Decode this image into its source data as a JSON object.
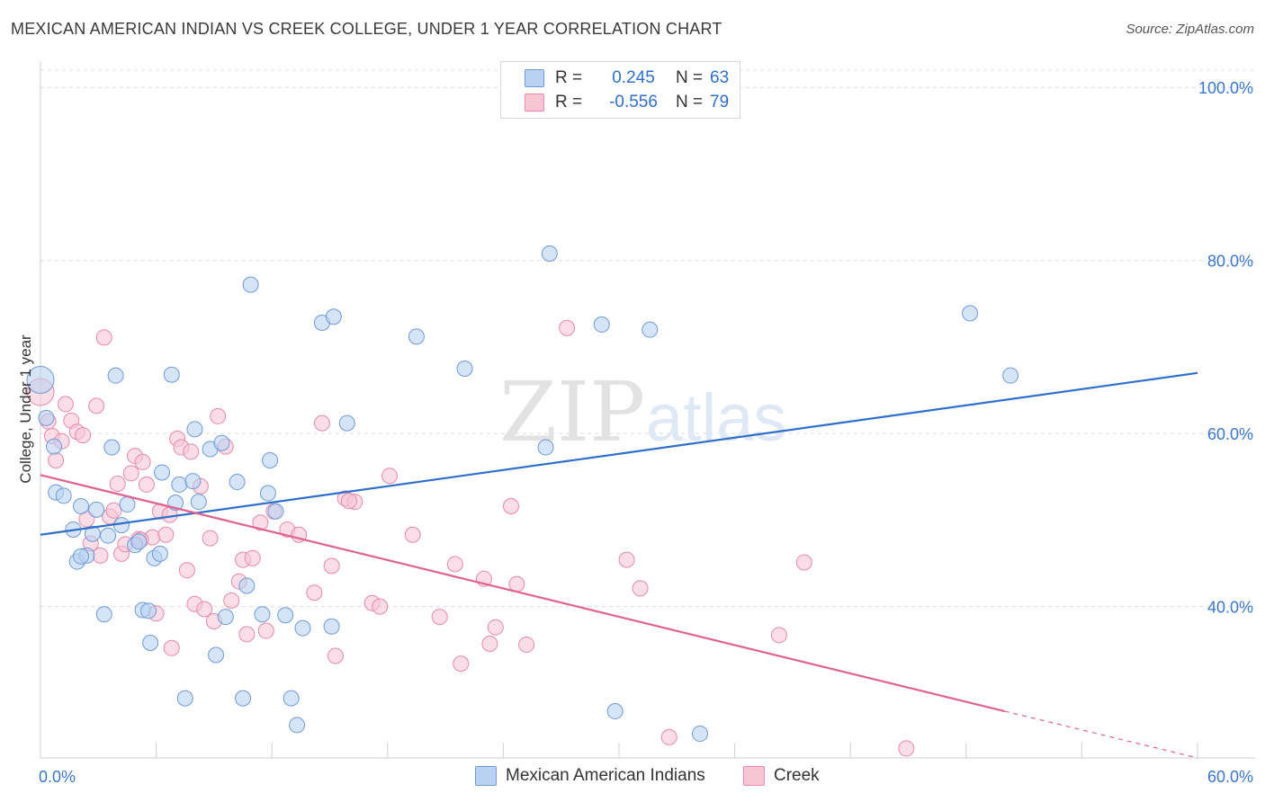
{
  "title": "MEXICAN AMERICAN INDIAN VS CREEK COLLEGE, UNDER 1 YEAR CORRELATION CHART",
  "source": "Source: ZipAtlas.com",
  "watermark": {
    "zip": "ZIP",
    "atlas": "atlas"
  },
  "legend": {
    "rows": [
      {
        "r_label": "R =",
        "r_value": "0.245",
        "n_label": "N =",
        "n_value": "63"
      },
      {
        "r_label": "R =",
        "r_value": "-0.556",
        "n_label": "N =",
        "n_value": "79"
      }
    ]
  },
  "bottom_legend": {
    "series1": "Mexican American Indians",
    "series2": "Creek"
  },
  "colors": {
    "blue_fill": "#b9d2f2",
    "blue_stroke": "#6f9ad8",
    "blue_line": "#2f6fca",
    "pink_fill": "#f7c6d5",
    "pink_stroke": "#e68aa8",
    "pink_line": "#e0628f",
    "axis_text": "#3b76cc",
    "grid": "#dcdcdc"
  },
  "chart_data": {
    "type": "scatter",
    "title": "MEXICAN AMERICAN INDIAN VS CREEK COLLEGE, UNDER 1 YEAR CORRELATION CHART",
    "xlabel": "",
    "ylabel": "College, Under 1 year",
    "xlim": [
      0,
      60
    ],
    "ylim": [
      22.5,
      102
    ],
    "x_tick_labels": [
      "0.0%",
      "60.0%"
    ],
    "y_ticks": [
      40,
      60,
      80,
      100
    ],
    "y_tick_labels": [
      "40.0%",
      "60.0%",
      "80.0%",
      "100.0%"
    ],
    "series": [
      {
        "name": "Mexican American Indians",
        "r": 0.245,
        "n": 63,
        "trend": {
          "x": [
            0,
            60
          ],
          "y": [
            48.3,
            67.0
          ]
        },
        "points": [
          [
            0.0,
            66.2
          ],
          [
            0.3,
            61.8
          ],
          [
            0.7,
            58.5
          ],
          [
            0.8,
            53.2
          ],
          [
            1.2,
            52.8
          ],
          [
            1.7,
            48.9
          ],
          [
            1.9,
            45.2
          ],
          [
            2.1,
            51.6
          ],
          [
            2.4,
            45.9
          ],
          [
            2.7,
            48.4
          ],
          [
            2.9,
            51.2
          ],
          [
            3.3,
            39.1
          ],
          [
            3.5,
            48.2
          ],
          [
            3.7,
            58.4
          ],
          [
            3.9,
            66.7
          ],
          [
            4.2,
            49.4
          ],
          [
            4.5,
            51.8
          ],
          [
            4.9,
            47.1
          ],
          [
            5.1,
            47.5
          ],
          [
            5.3,
            39.6
          ],
          [
            5.6,
            39.5
          ],
          [
            5.7,
            35.8
          ],
          [
            5.9,
            45.6
          ],
          [
            6.2,
            46.1
          ],
          [
            6.3,
            55.5
          ],
          [
            6.8,
            66.8
          ],
          [
            7.0,
            52.0
          ],
          [
            7.2,
            54.1
          ],
          [
            7.5,
            29.4
          ],
          [
            7.9,
            54.5
          ],
          [
            8.0,
            60.5
          ],
          [
            8.2,
            52.1
          ],
          [
            8.8,
            58.2
          ],
          [
            9.1,
            34.4
          ],
          [
            9.4,
            58.9
          ],
          [
            9.6,
            38.8
          ],
          [
            10.2,
            54.4
          ],
          [
            10.5,
            29.4
          ],
          [
            10.7,
            42.4
          ],
          [
            10.9,
            77.2
          ],
          [
            11.5,
            39.1
          ],
          [
            11.8,
            53.1
          ],
          [
            11.9,
            56.9
          ],
          [
            12.2,
            51.0
          ],
          [
            12.7,
            39.0
          ],
          [
            13.0,
            29.4
          ],
          [
            13.3,
            26.3
          ],
          [
            13.6,
            37.5
          ],
          [
            14.6,
            72.8
          ],
          [
            15.1,
            37.7
          ],
          [
            15.2,
            73.5
          ],
          [
            15.9,
            61.2
          ],
          [
            19.5,
            71.2
          ],
          [
            22.0,
            67.5
          ],
          [
            26.2,
            58.4
          ],
          [
            26.4,
            80.8
          ],
          [
            29.1,
            72.6
          ],
          [
            29.8,
            27.9
          ],
          [
            31.6,
            72.0
          ],
          [
            34.2,
            25.3
          ],
          [
            48.2,
            73.9
          ],
          [
            50.3,
            66.7
          ],
          [
            2.1,
            45.8
          ]
        ]
      },
      {
        "name": "Creek",
        "r": -0.556,
        "n": 79,
        "trend": {
          "x": [
            0,
            50
          ],
          "y": [
            55.2,
            27.9
          ]
        },
        "trend_dashed": {
          "x": [
            50,
            60
          ],
          "y": [
            27.9,
            22.5
          ]
        },
        "points": [
          [
            0.0,
            64.8
          ],
          [
            0.4,
            61.4
          ],
          [
            0.6,
            59.7
          ],
          [
            0.8,
            56.9
          ],
          [
            1.1,
            59.1
          ],
          [
            1.3,
            63.4
          ],
          [
            1.6,
            61.5
          ],
          [
            1.9,
            60.2
          ],
          [
            2.2,
            59.8
          ],
          [
            2.4,
            50.1
          ],
          [
            2.6,
            47.3
          ],
          [
            2.9,
            63.2
          ],
          [
            3.1,
            45.9
          ],
          [
            3.3,
            71.1
          ],
          [
            3.6,
            50.4
          ],
          [
            3.8,
            51.1
          ],
          [
            4.0,
            54.2
          ],
          [
            4.2,
            46.1
          ],
          [
            4.4,
            47.2
          ],
          [
            4.7,
            55.4
          ],
          [
            4.9,
            57.4
          ],
          [
            5.1,
            47.8
          ],
          [
            5.3,
            56.7
          ],
          [
            5.5,
            54.1
          ],
          [
            5.8,
            48.0
          ],
          [
            6.0,
            39.2
          ],
          [
            6.2,
            51.0
          ],
          [
            6.5,
            48.3
          ],
          [
            6.7,
            50.6
          ],
          [
            6.8,
            35.2
          ],
          [
            7.1,
            59.4
          ],
          [
            7.3,
            58.4
          ],
          [
            7.6,
            44.2
          ],
          [
            7.8,
            57.9
          ],
          [
            8.0,
            40.3
          ],
          [
            8.3,
            53.9
          ],
          [
            8.5,
            39.7
          ],
          [
            8.8,
            47.9
          ],
          [
            9.0,
            38.3
          ],
          [
            9.2,
            62.0
          ],
          [
            9.6,
            58.5
          ],
          [
            9.9,
            40.7
          ],
          [
            10.3,
            42.9
          ],
          [
            10.5,
            45.4
          ],
          [
            10.7,
            36.8
          ],
          [
            11.0,
            45.6
          ],
          [
            11.4,
            49.7
          ],
          [
            11.7,
            37.2
          ],
          [
            12.1,
            51.0
          ],
          [
            12.8,
            48.9
          ],
          [
            13.4,
            48.3
          ],
          [
            14.2,
            41.6
          ],
          [
            14.6,
            61.2
          ],
          [
            15.1,
            44.7
          ],
          [
            15.3,
            34.3
          ],
          [
            15.8,
            52.5
          ],
          [
            16.3,
            52.1
          ],
          [
            17.2,
            40.4
          ],
          [
            17.6,
            40.0
          ],
          [
            18.1,
            55.1
          ],
          [
            19.3,
            48.3
          ],
          [
            20.7,
            38.8
          ],
          [
            21.5,
            44.9
          ],
          [
            21.8,
            33.4
          ],
          [
            23.0,
            43.2
          ],
          [
            23.3,
            35.7
          ],
          [
            23.6,
            37.6
          ],
          [
            24.4,
            51.6
          ],
          [
            24.7,
            42.6
          ],
          [
            25.2,
            35.6
          ],
          [
            27.3,
            72.2
          ],
          [
            30.4,
            45.4
          ],
          [
            31.1,
            42.1
          ],
          [
            32.6,
            24.9
          ],
          [
            38.3,
            36.7
          ],
          [
            39.6,
            45.1
          ],
          [
            44.9,
            23.6
          ],
          [
            5.2,
            47.7
          ],
          [
            16.0,
            52.2
          ]
        ]
      }
    ]
  }
}
